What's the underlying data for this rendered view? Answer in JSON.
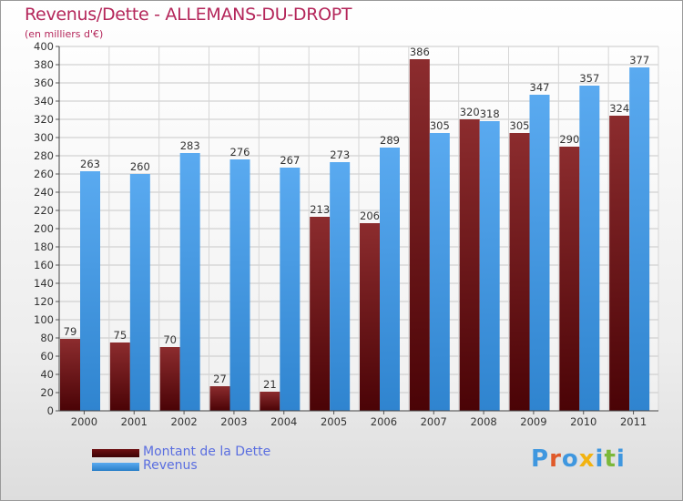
{
  "chart_data": {
    "type": "bar",
    "title": "Revenus/Dette - ALLEMANS-DU-DROPT",
    "subtitle": "(en milliers d'€)",
    "categories": [
      "2000",
      "2001",
      "2002",
      "2003",
      "2004",
      "2005",
      "2006",
      "2007",
      "2008",
      "2009",
      "2010",
      "2011"
    ],
    "series": [
      {
        "name": "Montant de la Dette",
        "values": [
          79,
          75,
          70,
          27,
          21,
          213,
          206,
          386,
          320,
          305,
          290,
          324
        ],
        "color": "#6e0f12"
      },
      {
        "name": "Revenus",
        "values": [
          263,
          260,
          283,
          276,
          267,
          273,
          289,
          305,
          318,
          347,
          357,
          377
        ],
        "color": "#3f97df"
      }
    ],
    "ylim": [
      0,
      400
    ],
    "ytick_step": 20,
    "grid": true,
    "legend_position": "bottom-left"
  },
  "logo": {
    "text": "Proxiti",
    "letter_colors": [
      "#3f97df",
      "#e05a2a",
      "#3f97df",
      "#f2b311",
      "#3f97df",
      "#7bb83a",
      "#3f97df"
    ]
  }
}
